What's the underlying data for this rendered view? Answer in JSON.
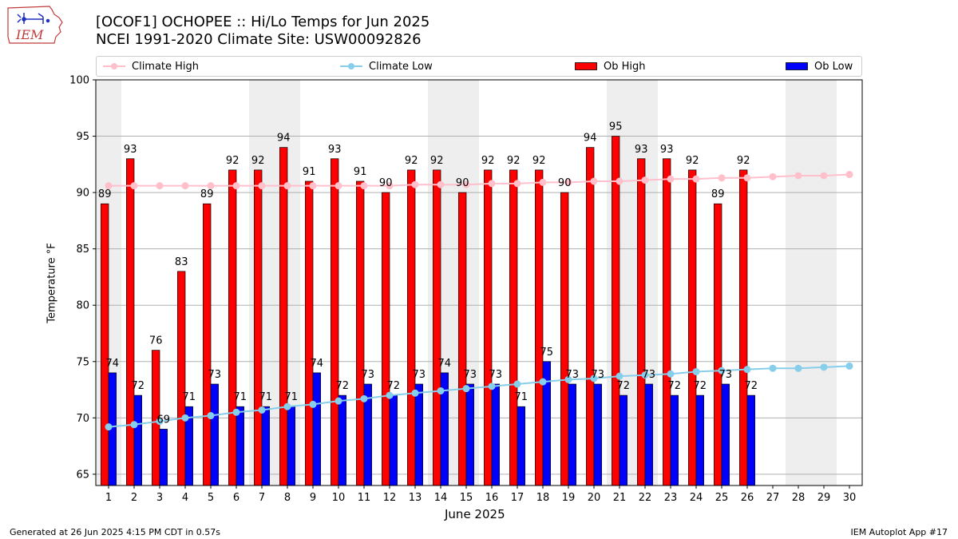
{
  "logo": {
    "text": "IEM",
    "icon": "iem-iowa-map-logo-icon"
  },
  "title_line1": "[OCOF1] OCHOPEE :: Hi/Lo Temps for Jun 2025",
  "title_line2": "NCEI 1991-2020 Climate Site: USW00092826",
  "legend": {
    "placement": "top",
    "items": [
      {
        "label": "Climate High",
        "color": "#ffc0cb",
        "kind": "line"
      },
      {
        "label": "Climate Low",
        "color": "#87ceeb",
        "kind": "line"
      },
      {
        "label": "Ob High",
        "color": "#ff0000",
        "kind": "bar"
      },
      {
        "label": "Ob Low",
        "color": "#0000ff",
        "kind": "bar"
      }
    ]
  },
  "footer": {
    "left": "Generated at 26 Jun 2025 4:15 PM CDT in 0.57s",
    "right": "IEM Autoplot App #17"
  },
  "chart_data": {
    "type": "bar",
    "xlabel": "June 2025",
    "ylabel": "Temperature °F",
    "ylim": [
      64,
      100
    ],
    "yticks": [
      65,
      70,
      75,
      80,
      85,
      90,
      95,
      100
    ],
    "xlim": [
      0.5,
      30.5
    ],
    "grid": "horizontal",
    "days": [
      1,
      2,
      3,
      4,
      5,
      6,
      7,
      8,
      9,
      10,
      11,
      12,
      13,
      14,
      15,
      16,
      17,
      18,
      19,
      20,
      21,
      22,
      23,
      24,
      25,
      26,
      27,
      28,
      29,
      30
    ],
    "weekend_shading": [
      [
        1,
        1
      ],
      [
        7,
        8
      ],
      [
        14,
        15
      ],
      [
        21,
        22
      ],
      [
        28,
        29
      ]
    ],
    "series": [
      {
        "name": "Ob High",
        "type": "bar",
        "color": "#ff0000",
        "values": [
          89,
          93,
          76,
          83,
          89,
          92,
          92,
          94,
          91,
          93,
          91,
          90,
          92,
          92,
          90,
          92,
          92,
          92,
          90,
          94,
          95,
          93,
          93,
          92,
          89,
          92
        ]
      },
      {
        "name": "Ob Low",
        "type": "bar",
        "color": "#0000ff",
        "values": [
          74,
          72,
          69,
          71,
          73,
          71,
          71,
          71,
          74,
          72,
          73,
          72,
          73,
          74,
          73,
          73,
          71,
          75,
          73,
          73,
          72,
          73,
          72,
          72,
          73,
          72
        ]
      },
      {
        "name": "Climate High",
        "type": "line",
        "color": "#ffc0cb",
        "values": [
          90.6,
          90.6,
          90.6,
          90.6,
          90.6,
          90.6,
          90.6,
          90.6,
          90.6,
          90.6,
          90.6,
          90.6,
          90.7,
          90.7,
          90.7,
          90.8,
          90.8,
          90.9,
          90.9,
          91.0,
          91.0,
          91.1,
          91.2,
          91.2,
          91.3,
          91.3,
          91.4,
          91.5,
          91.5,
          91.6
        ]
      },
      {
        "name": "Climate Low",
        "type": "line",
        "color": "#87ceeb",
        "values": [
          69.2,
          69.4,
          69.7,
          70.0,
          70.2,
          70.5,
          70.7,
          71.0,
          71.2,
          71.5,
          71.7,
          72.0,
          72.2,
          72.4,
          72.6,
          72.8,
          73.0,
          73.2,
          73.4,
          73.5,
          73.7,
          73.8,
          73.9,
          74.1,
          74.2,
          74.3,
          74.4,
          74.4,
          74.5,
          74.6
        ]
      }
    ]
  }
}
